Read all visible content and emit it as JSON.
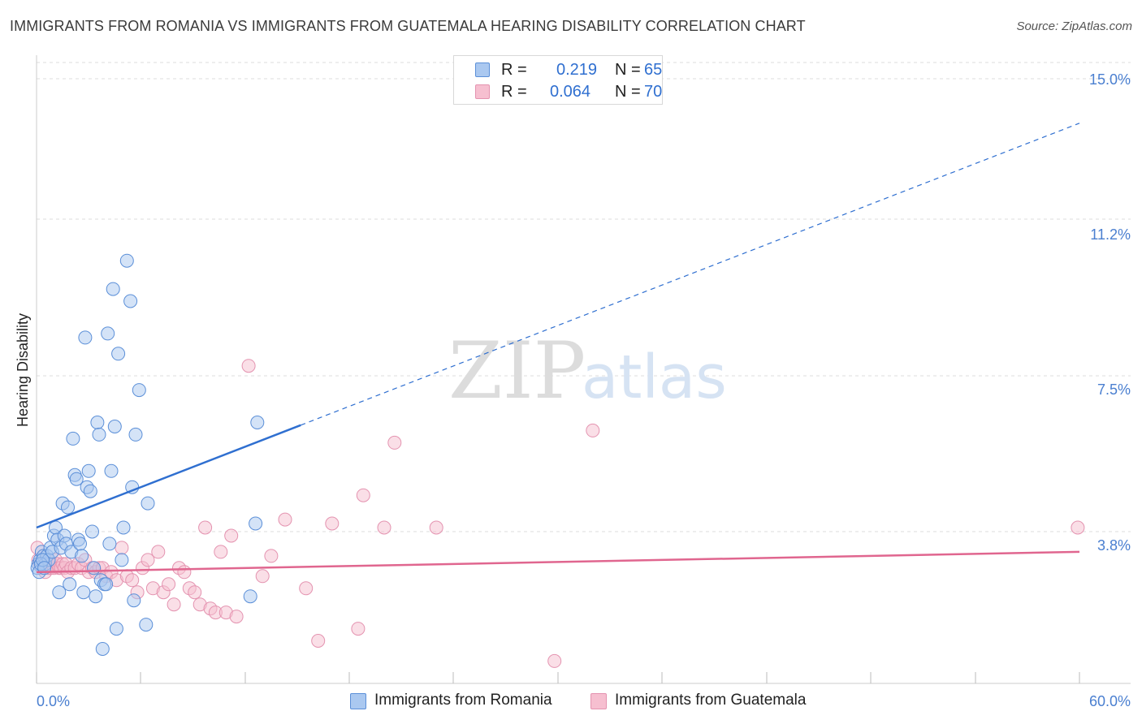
{
  "title": "IMMIGRANTS FROM ROMANIA VS IMMIGRANTS FROM GUATEMALA HEARING DISABILITY CORRELATION CHART",
  "source": "Source: ZipAtlas.com",
  "watermark": {
    "zip": "ZIP",
    "atlas": "atlas"
  },
  "legend": {
    "rows": [
      {
        "r_label": "R =",
        "r_value": "0.219",
        "n_label": "N =",
        "n_value": "65"
      },
      {
        "r_label": "R =",
        "r_value": "0.064",
        "n_label": "N =",
        "n_value": "70"
      }
    ]
  },
  "bottom_legend": {
    "romania": "Immigrants from Romania",
    "guatemala": "Immigrants from Guatemala"
  },
  "colors": {
    "romania_fill": "#aac8f0",
    "romania_stroke": "#5b8fd8",
    "romania_line": "#2f6fd0",
    "guatemala_fill": "#f6bfd0",
    "guatemala_stroke": "#e493b0",
    "guatemala_line": "#e0668f",
    "grid": "#dddddd",
    "tick_label": "#4a7fd0"
  },
  "chart_data": {
    "type": "scatter",
    "title": "IMMIGRANTS FROM ROMANIA VS IMMIGRANTS FROM GUATEMALA HEARING DISABILITY CORRELATION CHART",
    "xlabel": "",
    "ylabel": "Hearing Disability",
    "xlim": [
      0,
      60
    ],
    "ylim": [
      0,
      15.5
    ],
    "x_tick_labels": [
      "0.0%",
      "60.0%"
    ],
    "y_ticks": [
      3.8,
      7.5,
      11.2,
      15.0
    ],
    "y_tick_labels": [
      "3.8%",
      "7.5%",
      "11.2%",
      "15.0%"
    ],
    "grid": true,
    "legend_position": "top-center",
    "series": [
      {
        "name": "Immigrants from Romania",
        "trend": {
          "x0": 0,
          "y0": 3.9,
          "x_solid_end": 15.2,
          "x_end": 60,
          "y_end": 13.9
        },
        "points": [
          [
            0.1,
            3.0
          ],
          [
            0.2,
            3.1
          ],
          [
            0.3,
            3.3
          ],
          [
            0.4,
            3.2
          ],
          [
            0.5,
            3.0
          ],
          [
            0.6,
            3.2
          ],
          [
            0.7,
            3.1
          ],
          [
            0.8,
            3.4
          ],
          [
            0.9,
            3.3
          ],
          [
            1.0,
            3.7
          ],
          [
            1.1,
            3.9
          ],
          [
            1.2,
            3.6
          ],
          [
            1.3,
            2.3
          ],
          [
            1.4,
            3.4
          ],
          [
            1.5,
            4.5
          ],
          [
            1.6,
            3.7
          ],
          [
            1.7,
            3.5
          ],
          [
            1.8,
            4.4
          ],
          [
            1.9,
            2.5
          ],
          [
            2.0,
            3.3
          ],
          [
            2.1,
            6.1
          ],
          [
            2.2,
            5.2
          ],
          [
            2.3,
            5.1
          ],
          [
            2.4,
            3.6
          ],
          [
            2.5,
            3.5
          ],
          [
            2.6,
            3.2
          ],
          [
            2.7,
            2.3
          ],
          [
            2.8,
            8.6
          ],
          [
            2.9,
            4.9
          ],
          [
            3.0,
            5.3
          ],
          [
            3.1,
            4.8
          ],
          [
            3.2,
            3.8
          ],
          [
            3.3,
            2.9
          ],
          [
            3.4,
            2.2
          ],
          [
            3.5,
            6.5
          ],
          [
            3.6,
            6.2
          ],
          [
            3.7,
            2.6
          ],
          [
            3.8,
            0.9
          ],
          [
            3.9,
            2.5
          ],
          [
            4.0,
            2.5
          ],
          [
            4.1,
            8.7
          ],
          [
            4.2,
            3.5
          ],
          [
            4.3,
            5.3
          ],
          [
            4.4,
            9.8
          ],
          [
            4.5,
            6.4
          ],
          [
            4.6,
            1.4
          ],
          [
            4.7,
            8.2
          ],
          [
            4.9,
            3.1
          ],
          [
            5.0,
            3.9
          ],
          [
            5.2,
            10.5
          ],
          [
            5.4,
            9.5
          ],
          [
            5.5,
            4.9
          ],
          [
            5.6,
            2.1
          ],
          [
            5.7,
            6.2
          ],
          [
            5.9,
            7.3
          ],
          [
            6.3,
            1.5
          ],
          [
            6.4,
            4.5
          ],
          [
            12.3,
            2.2
          ],
          [
            12.6,
            4.0
          ],
          [
            12.7,
            6.5
          ],
          [
            0.05,
            2.9
          ],
          [
            0.15,
            2.8
          ],
          [
            0.25,
            3.0
          ],
          [
            0.35,
            3.1
          ],
          [
            0.45,
            2.9
          ]
        ]
      },
      {
        "name": "Immigrants from Guatemala",
        "trend": {
          "x0": 0,
          "y0": 2.8,
          "x_end": 60,
          "y_end": 3.3
        },
        "points": [
          [
            0.05,
            3.4
          ],
          [
            0.1,
            3.1
          ],
          [
            0.2,
            3.0
          ],
          [
            0.3,
            2.9
          ],
          [
            0.4,
            3.0
          ],
          [
            0.5,
            2.8
          ],
          [
            0.6,
            3.0
          ],
          [
            0.7,
            2.9
          ],
          [
            0.8,
            2.9
          ],
          [
            0.9,
            3.0
          ],
          [
            1.0,
            2.9
          ],
          [
            1.1,
            3.1
          ],
          [
            1.2,
            3.0
          ],
          [
            1.3,
            2.9
          ],
          [
            1.4,
            2.9
          ],
          [
            1.5,
            3.0
          ],
          [
            1.6,
            2.9
          ],
          [
            1.7,
            3.0
          ],
          [
            1.8,
            2.8
          ],
          [
            2.0,
            2.9
          ],
          [
            2.2,
            2.9
          ],
          [
            2.4,
            3.0
          ],
          [
            2.6,
            2.9
          ],
          [
            2.8,
            3.1
          ],
          [
            3.0,
            2.8
          ],
          [
            3.2,
            2.9
          ],
          [
            3.4,
            2.8
          ],
          [
            3.6,
            2.9
          ],
          [
            3.8,
            2.9
          ],
          [
            4.0,
            2.7
          ],
          [
            4.3,
            2.8
          ],
          [
            4.6,
            2.6
          ],
          [
            4.9,
            3.4
          ],
          [
            5.2,
            2.7
          ],
          [
            5.5,
            2.6
          ],
          [
            5.8,
            2.3
          ],
          [
            6.1,
            2.9
          ],
          [
            6.4,
            3.1
          ],
          [
            6.7,
            2.4
          ],
          [
            7.0,
            3.3
          ],
          [
            7.3,
            2.3
          ],
          [
            7.6,
            2.5
          ],
          [
            7.9,
            2.0
          ],
          [
            8.2,
            2.9
          ],
          [
            8.5,
            2.8
          ],
          [
            8.8,
            2.4
          ],
          [
            9.1,
            2.3
          ],
          [
            9.4,
            2.0
          ],
          [
            9.7,
            3.9
          ],
          [
            10.0,
            1.9
          ],
          [
            10.3,
            1.8
          ],
          [
            10.6,
            3.3
          ],
          [
            10.9,
            1.8
          ],
          [
            11.2,
            3.7
          ],
          [
            11.5,
            1.7
          ],
          [
            12.2,
            7.9
          ],
          [
            13.0,
            2.7
          ],
          [
            13.5,
            3.2
          ],
          [
            14.3,
            4.1
          ],
          [
            15.5,
            2.4
          ],
          [
            16.2,
            1.1
          ],
          [
            17.0,
            4.0
          ],
          [
            18.5,
            1.4
          ],
          [
            18.8,
            4.7
          ],
          [
            20.0,
            3.9
          ],
          [
            20.6,
            6.0
          ],
          [
            23.0,
            3.9
          ],
          [
            29.8,
            0.6
          ],
          [
            32.0,
            6.3
          ],
          [
            59.9,
            3.9
          ]
        ]
      }
    ]
  }
}
